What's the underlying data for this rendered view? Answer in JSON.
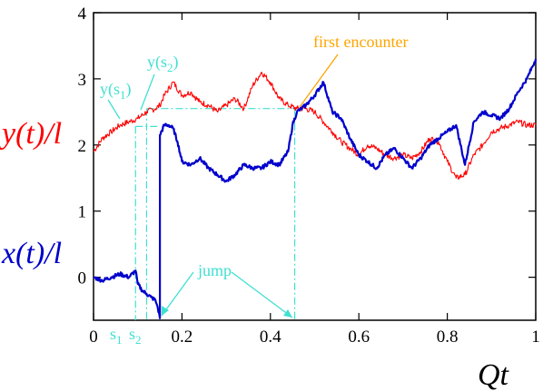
{
  "chart_data": {
    "type": "line",
    "xlabel": "Qt",
    "xlim": [
      0,
      1
    ],
    "ylim": [
      -0.65,
      4
    ],
    "x_ticks": [
      {
        "value": 0,
        "label": "0"
      },
      {
        "value": 0.2,
        "label": "0.2"
      },
      {
        "value": 0.4,
        "label": "0.4"
      },
      {
        "value": 0.6,
        "label": "0.6"
      },
      {
        "value": 0.8,
        "label": "0.8"
      },
      {
        "value": 1,
        "label": "1"
      }
    ],
    "y_ticks": [
      {
        "value": 0,
        "label": "0"
      },
      {
        "value": 1,
        "label": "1"
      },
      {
        "value": 2,
        "label": "2"
      },
      {
        "value": 3,
        "label": "3"
      },
      {
        "value": 4,
        "label": "4"
      }
    ],
    "series": [
      {
        "name": "y(t)/l",
        "color": "#ff0000",
        "x": [
          0,
          0.02,
          0.04,
          0.06,
          0.08,
          0.1,
          0.12,
          0.14,
          0.15,
          0.16,
          0.18,
          0.2,
          0.22,
          0.24,
          0.26,
          0.28,
          0.3,
          0.32,
          0.34,
          0.36,
          0.38,
          0.4,
          0.42,
          0.44,
          0.46,
          0.48,
          0.5,
          0.52,
          0.54,
          0.56,
          0.58,
          0.6,
          0.62,
          0.64,
          0.66,
          0.68,
          0.7,
          0.72,
          0.74,
          0.76,
          0.78,
          0.8,
          0.82,
          0.84,
          0.86,
          0.88,
          0.9,
          0.92,
          0.94,
          0.96,
          0.98,
          1.0
        ],
        "y": [
          1.9,
          2.1,
          2.2,
          2.3,
          2.35,
          2.4,
          2.5,
          2.55,
          2.6,
          2.75,
          2.95,
          2.75,
          2.8,
          2.65,
          2.6,
          2.5,
          2.6,
          2.7,
          2.55,
          2.9,
          3.1,
          2.95,
          2.7,
          2.6,
          2.55,
          2.55,
          2.5,
          2.35,
          2.2,
          2.05,
          1.95,
          1.85,
          2.0,
          1.95,
          1.85,
          1.8,
          1.85,
          1.8,
          1.9,
          2.1,
          2.05,
          1.75,
          1.5,
          1.55,
          1.85,
          2.0,
          2.2,
          2.25,
          2.3,
          2.35,
          2.3,
          2.3
        ]
      },
      {
        "name": "x(t)/l",
        "color": "#0000cc",
        "x": [
          0,
          0.02,
          0.04,
          0.06,
          0.08,
          0.095,
          0.1,
          0.11,
          0.12,
          0.13,
          0.14,
          0.145,
          0.15,
          0.1501,
          0.16,
          0.17,
          0.18,
          0.19,
          0.2,
          0.22,
          0.24,
          0.26,
          0.28,
          0.3,
          0.32,
          0.34,
          0.36,
          0.38,
          0.4,
          0.42,
          0.44,
          0.45,
          0.46,
          0.48,
          0.5,
          0.52,
          0.54,
          0.56,
          0.58,
          0.6,
          0.62,
          0.64,
          0.66,
          0.68,
          0.7,
          0.72,
          0.74,
          0.76,
          0.78,
          0.8,
          0.82,
          0.84,
          0.86,
          0.88,
          0.9,
          0.92,
          0.94,
          0.96,
          0.98,
          1.0
        ],
        "y": [
          0.0,
          -0.05,
          0.0,
          0.05,
          0.0,
          0.1,
          -0.1,
          -0.2,
          -0.25,
          -0.3,
          -0.35,
          -0.45,
          -0.62,
          2.15,
          2.3,
          2.3,
          2.25,
          2.05,
          1.75,
          1.7,
          1.8,
          1.65,
          1.55,
          1.45,
          1.55,
          1.7,
          1.65,
          1.65,
          1.75,
          1.7,
          1.9,
          2.3,
          2.5,
          2.6,
          2.75,
          2.95,
          2.5,
          2.4,
          2.1,
          1.85,
          1.75,
          1.65,
          1.85,
          1.95,
          1.8,
          1.65,
          1.8,
          2.0,
          2.1,
          2.2,
          2.3,
          1.7,
          2.35,
          2.5,
          2.45,
          2.4,
          2.55,
          2.8,
          3.0,
          3.3
        ]
      }
    ],
    "annotations": {
      "ylabel": "y(t)/l",
      "xlabel_left": "x(t)/l",
      "first_encounter": "first encounter",
      "jump": "jump",
      "y_s1": "y(s",
      "y_s1_sub": "1",
      "y_s2": "y(s",
      "y_s2_sub": "2",
      "paren": ")",
      "s1": "s",
      "s1_sub": "1",
      "s2": "s",
      "s2_sub": "2"
    },
    "markers": {
      "s1": 0.095,
      "s2": 0.12,
      "jump_t": 0.15,
      "encounter_t": 0.455,
      "y_s1": 2.28,
      "y_s2": 2.55
    },
    "colors": {
      "y_series": "#ff0000",
      "x_series": "#0000cc",
      "guides": "#40e0d0",
      "encounter": "#ffa500"
    }
  }
}
